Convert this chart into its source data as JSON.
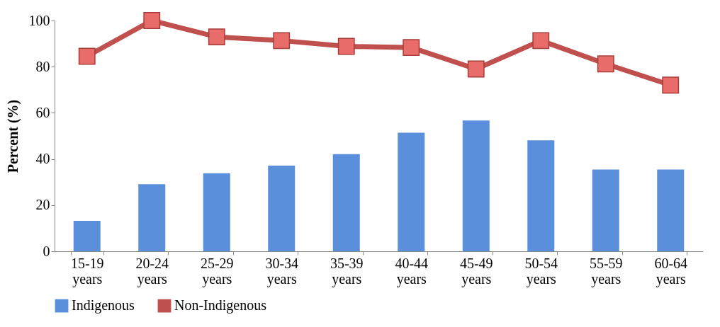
{
  "chart_data": {
    "type": "bar",
    "ylabel": "Percent (%)",
    "categories": [
      "15-19 years",
      "20-24 years",
      "25-29 years",
      "30-34 years",
      "35-39 years",
      "40-44 years",
      "45-49 years",
      "50-54 years",
      "55-59 years",
      "60-64 years"
    ],
    "series": [
      {
        "name": "Indigenous",
        "color": "#5a8fdc",
        "values": [
          13.2,
          29.1,
          33.8,
          37.1,
          42.1,
          51.4,
          56.7,
          48.1,
          35.4,
          35.4
        ]
      },
      {
        "name": "Non-Indigenous",
        "type": "line",
        "color": "#c0504d",
        "values": [
          84.5,
          100,
          92.9,
          91.3,
          88.8,
          88.3,
          79,
          91.3,
          81.2,
          72
        ]
      }
    ],
    "ylim": [
      0,
      100
    ],
    "yticks": [
      0,
      20,
      40,
      60,
      80,
      100
    ],
    "grid": false,
    "legend": "bottom",
    "marker": "square",
    "line_style": "solid"
  }
}
